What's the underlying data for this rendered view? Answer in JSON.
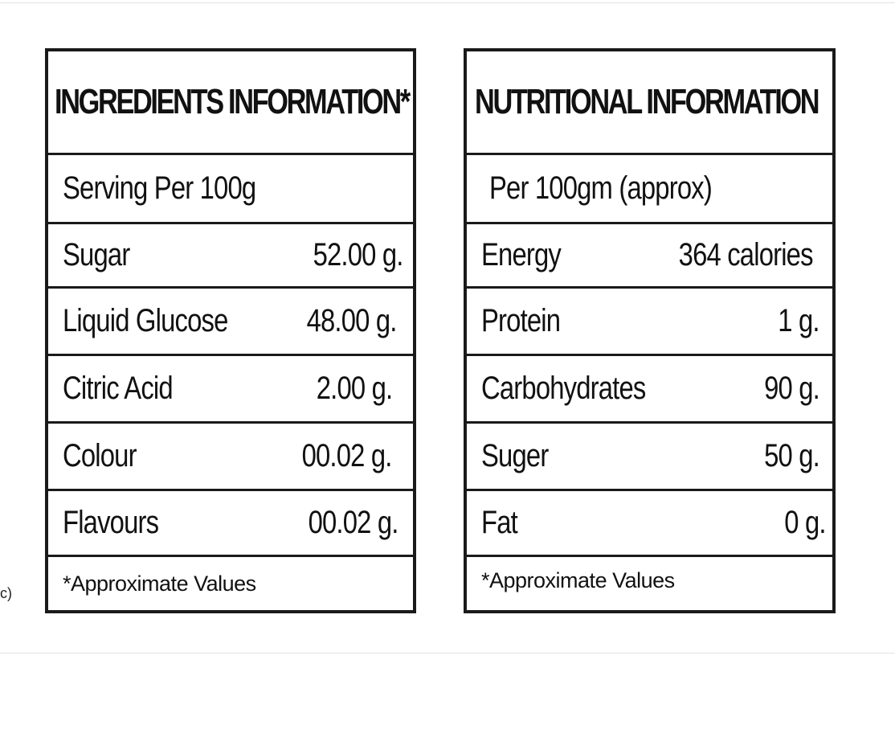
{
  "edge_fragment": "c)",
  "ingredients": {
    "title": "INGREDIENTS INFORMATION*",
    "serving": "Serving Per 100g",
    "rows": [
      {
        "label": "Sugar",
        "value": "52.00 g."
      },
      {
        "label": "Liquid Glucose",
        "value": "48.00 g."
      },
      {
        "label": "Citric Acid",
        "value": "2.00 g."
      },
      {
        "label": "Colour",
        "value": "00.02 g."
      },
      {
        "label": "Flavours",
        "value": "00.02 g."
      }
    ],
    "footnote": "*Approximate Values"
  },
  "nutrition": {
    "title": "NUTRITIONAL INFORMATION",
    "serving": "Per 100gm (approx)",
    "rows": [
      {
        "label": "Energy",
        "value": "364 calories"
      },
      {
        "label": "Protein",
        "value": "1 g."
      },
      {
        "label": "Carbohydrates",
        "value": "90 g."
      },
      {
        "label": "Suger",
        "value": "50 g."
      },
      {
        "label": "Fat",
        "value": "0 g."
      }
    ],
    "footnote": "*Approximate Values"
  }
}
